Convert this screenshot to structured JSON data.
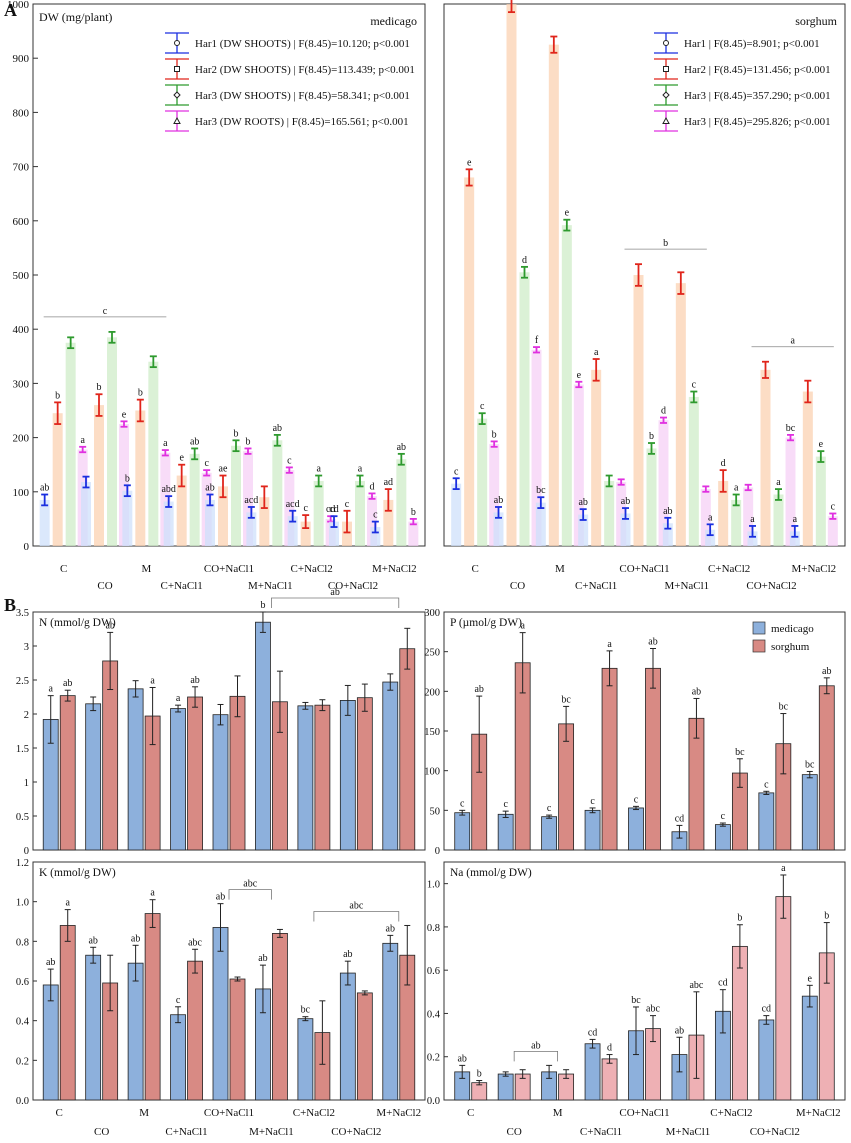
{
  "figure": {
    "panel_labels": [
      "A",
      "B"
    ],
    "colors": {
      "har1": "#1a2fe0",
      "har2": "#e0251b",
      "har3_shoot": "#2e9a2e",
      "har3_root": "#e030e0",
      "medicago_bar": "#8db0dc",
      "sorghum_bar": "#d88a84",
      "sorghum_na_bar": "#eeb0b4",
      "axis": "#333333"
    }
  },
  "chart_data": [
    {
      "id": "A-medicago",
      "type": "bar",
      "title": "medicago",
      "ylabel": "DW (mg/plant)",
      "ylim": [
        0,
        1000
      ],
      "yticks": [
        0,
        100,
        200,
        300,
        400,
        500,
        600,
        700,
        800,
        900,
        1000
      ],
      "categories": [
        "C",
        "CO",
        "M",
        "C+NaCl1",
        "CO+NaCl1",
        "M+NaCl1",
        "C+NaCl2",
        "CO+NaCl2",
        "M+NaCl2"
      ],
      "legend": [
        "Har1 (DW SHOOTS) | F(8.45)=10.120; p<0.001",
        "Har2 (DW SHOOTS) | F(8.45)=113.439; p<0.001",
        "Har3 (DW SHOOTS) | F(8.45)=58.341; p<0.001",
        "Har3 (DW ROOTS) | F(8.45)=165.561; p<0.001"
      ],
      "series": [
        {
          "name": "Har1 (DW SHOOTS)",
          "values": [
            85,
            118,
            102,
            82,
            85,
            62,
            55,
            45,
            35
          ],
          "errors": [
            10,
            10,
            10,
            10,
            10,
            10,
            10,
            10,
            10
          ],
          "letters": [
            "ab",
            "",
            "b",
            "abd",
            "ab",
            "acd",
            "acd",
            "cd",
            "c"
          ]
        },
        {
          "name": "Har2 (DW SHOOTS)",
          "values": [
            245,
            260,
            250,
            130,
            110,
            90,
            45,
            45,
            85
          ],
          "errors": [
            20,
            20,
            20,
            20,
            20,
            20,
            12,
            20,
            20
          ],
          "letters": [
            "b",
            "b",
            "b",
            "e",
            "ae",
            "",
            "c",
            "c",
            "ad"
          ]
        },
        {
          "name": "Har3 (DW SHOOTS)",
          "values": [
            375,
            385,
            340,
            170,
            185,
            195,
            120,
            120,
            160
          ],
          "errors": [
            10,
            10,
            10,
            10,
            10,
            10,
            10,
            10,
            10
          ],
          "letters": [
            "",
            "",
            "",
            "ab",
            "b",
            "ab",
            "a",
            "a",
            "ab"
          ]
        },
        {
          "name": "Har3 (DW ROOTS)",
          "values": [
            178,
            225,
            172,
            135,
            175,
            140,
            50,
            92,
            45
          ],
          "errors": [
            5,
            5,
            5,
            5,
            5,
            5,
            5,
            5,
            5
          ],
          "letters": [
            "a",
            "e",
            "a",
            "c",
            "b",
            "c",
            "cd",
            "d",
            "b"
          ]
        }
      ],
      "bracket": {
        "label": "c",
        "from": "C",
        "to": "M"
      }
    },
    {
      "id": "A-sorghum",
      "type": "bar",
      "title": "sorghum",
      "ylim": [
        0,
        1000
      ],
      "categories": [
        "C",
        "CO",
        "M",
        "C+NaCl1",
        "CO+NaCl1",
        "M+NaCl1",
        "C+NaCl2",
        "CO+NaCl2",
        "M+NaCl2"
      ],
      "legend": [
        "Har1 | F(8.45)=8.901; p<0.001",
        "Har2 | F(8.45)=131.456; p<0.001",
        "Har3 | F(8.45)=357.290; p<0.001",
        "Har3 | F(8.45)=295.826; p<0.001"
      ],
      "series": [
        {
          "name": "Har1",
          "values": [
            115,
            62,
            80,
            58,
            60,
            42,
            30,
            27,
            27
          ],
          "errors": [
            10,
            10,
            10,
            10,
            10,
            10,
            10,
            10,
            10
          ],
          "letters": [
            "c",
            "ab",
            "bc",
            "ab",
            "ab",
            "ab",
            "a",
            "a",
            "a"
          ]
        },
        {
          "name": "Har2",
          "values": [
            680,
            1000,
            925,
            325,
            500,
            485,
            120,
            325,
            285
          ],
          "errors": [
            15,
            15,
            15,
            20,
            20,
            20,
            20,
            15,
            20
          ],
          "letters": [
            "e",
            "",
            "",
            "a",
            "",
            "",
            "d",
            "",
            ""
          ]
        },
        {
          "name": "Har3 (shoots)",
          "values": [
            235,
            505,
            592,
            120,
            180,
            275,
            85,
            95,
            165
          ],
          "errors": [
            10,
            10,
            10,
            10,
            10,
            10,
            10,
            10,
            10
          ],
          "letters": [
            "c",
            "d",
            "e",
            "",
            "b",
            "c",
            "a",
            "a",
            "e"
          ]
        },
        {
          "name": "Har3 (roots)",
          "values": [
            188,
            362,
            298,
            118,
            232,
            105,
            108,
            200,
            55
          ],
          "errors": [
            5,
            5,
            5,
            5,
            5,
            5,
            5,
            5,
            5
          ],
          "letters": [
            "b",
            "f",
            "e",
            "",
            "d",
            "",
            "",
            "bc",
            "c"
          ]
        }
      ],
      "brackets": [
        {
          "label": "c",
          "from": "CO",
          "to": "M"
        },
        {
          "label": "b",
          "from": "CO+NaCl1",
          "to": "M+NaCl1"
        },
        {
          "label": "a",
          "from": "CO+NaCl2",
          "to": "M+NaCl2"
        }
      ]
    },
    {
      "id": "B-N",
      "type": "bar",
      "ylabel": "N (mmol/g DW)",
      "ylim": [
        0,
        3.5
      ],
      "yticks": [
        0,
        0.5,
        1,
        1.5,
        2,
        2.5,
        3,
        3.5
      ],
      "categories": [
        "C",
        "CO",
        "M",
        "C+NaCl1",
        "CO+NaCl1",
        "M+NaCl1",
        "C+NaCl2",
        "CO+NaCl2",
        "M+NaCl2"
      ],
      "series": [
        {
          "name": "medicago",
          "values": [
            1.92,
            2.15,
            2.37,
            2.08,
            1.99,
            3.35,
            2.12,
            2.2,
            2.47
          ],
          "errors": [
            0.35,
            0.1,
            0.12,
            0.05,
            0.15,
            0.15,
            0.05,
            0.22,
            0.12
          ],
          "letters": [
            "a",
            "",
            "",
            "a",
            "",
            "b",
            "",
            "",
            ""
          ]
        },
        {
          "name": "sorghum",
          "values": [
            2.27,
            2.78,
            1.97,
            2.25,
            2.26,
            2.18,
            2.13,
            2.24,
            2.96
          ],
          "errors": [
            0.08,
            0.42,
            0.42,
            0.15,
            0.3,
            0.45,
            0.08,
            0.2,
            0.3
          ],
          "letters": [
            "ab",
            "ab",
            "a",
            "ab",
            "",
            "",
            "",
            "",
            ""
          ]
        }
      ],
      "bracket": {
        "label": "ab",
        "from": "M+NaCl1",
        "to": "M+NaCl2"
      }
    },
    {
      "id": "B-P",
      "type": "bar",
      "ylabel": "P (µmol/g DW)",
      "ylim": [
        0,
        300
      ],
      "yticks": [
        0,
        50,
        100,
        150,
        200,
        250,
        300
      ],
      "legend": [
        "medicago",
        "sorghum"
      ],
      "categories": [
        "C",
        "CO",
        "M",
        "C+NaCl1",
        "CO+NaCl1",
        "M+NaCl1",
        "C+NaCl2",
        "CO+NaCl2",
        "M+NaCl2"
      ],
      "series": [
        {
          "name": "medicago",
          "values": [
            47,
            45,
            42,
            50,
            53,
            23,
            32,
            72,
            95
          ],
          "errors": [
            3,
            4,
            2,
            3,
            2,
            8,
            2,
            2,
            4
          ],
          "letters": [
            "c",
            "c",
            "c",
            "c",
            "c",
            "cd",
            "c",
            "c",
            "bc"
          ]
        },
        {
          "name": "sorghum",
          "values": [
            146,
            236,
            159,
            229,
            229,
            166,
            97,
            134,
            207
          ],
          "errors": [
            48,
            38,
            22,
            22,
            25,
            25,
            18,
            38,
            10
          ],
          "letters": [
            "ab",
            "a",
            "bc",
            "a",
            "ab",
            "ab",
            "bc",
            "bc",
            "ab"
          ]
        }
      ]
    },
    {
      "id": "B-K",
      "type": "bar",
      "ylabel": "K (mmol/g DW)",
      "ylim": [
        0,
        1.2
      ],
      "yticks": [
        0.0,
        0.2,
        0.4,
        0.6,
        0.8,
        1.0,
        1.2
      ],
      "categories": [
        "C",
        "CO",
        "M",
        "C+NaCl1",
        "CO+NaCl1",
        "M+NaCl1",
        "C+NaCl2",
        "CO+NaCl2",
        "M+NaCl2"
      ],
      "series": [
        {
          "name": "medicago",
          "values": [
            0.58,
            0.73,
            0.69,
            0.43,
            0.87,
            0.56,
            0.41,
            0.64,
            0.79
          ],
          "errors": [
            0.08,
            0.04,
            0.09,
            0.04,
            0.12,
            0.12,
            0.01,
            0.06,
            0.04
          ],
          "letters": [
            "ab",
            "ab",
            "ab",
            "c",
            "ab",
            "ab",
            "bc",
            "ab",
            "ab"
          ]
        },
        {
          "name": "sorghum",
          "values": [
            0.88,
            0.59,
            0.94,
            0.7,
            0.61,
            0.84,
            0.34,
            0.54,
            0.73
          ],
          "errors": [
            0.08,
            0.14,
            0.07,
            0.06,
            0.01,
            0.02,
            0.16,
            0.01,
            0.15
          ],
          "letters": [
            "a",
            "",
            "a",
            "abc",
            "",
            "",
            "",
            "",
            ""
          ]
        }
      ],
      "brackets": [
        {
          "label": "abc",
          "from": "CO+NaCl1",
          "to": "M+NaCl1"
        },
        {
          "label": "abc",
          "from": "C+NaCl2",
          "to": "M+NaCl2"
        }
      ]
    },
    {
      "id": "B-Na",
      "type": "bar",
      "ylabel": "Na (mmol/g DW)",
      "ylim": [
        0,
        1.1
      ],
      "yticks": [
        0.0,
        0.2,
        0.4,
        0.6,
        0.8,
        1.0
      ],
      "categories": [
        "C",
        "CO",
        "M",
        "C+NaCl1",
        "CO+NaCl1",
        "M+NaCl1",
        "C+NaCl2",
        "CO+NaCl2",
        "M+NaCl2"
      ],
      "series": [
        {
          "name": "medicago",
          "values": [
            0.13,
            0.12,
            0.13,
            0.26,
            0.32,
            0.21,
            0.41,
            0.37,
            0.48
          ],
          "errors": [
            0.03,
            0.01,
            0.03,
            0.02,
            0.11,
            0.08,
            0.1,
            0.02,
            0.05
          ],
          "letters": [
            "ab",
            "",
            "",
            "cd",
            "bc",
            "ab",
            "cd",
            "cd",
            "e"
          ]
        },
        {
          "name": "sorghum",
          "values": [
            0.08,
            0.12,
            0.12,
            0.19,
            0.33,
            0.3,
            0.71,
            0.94,
            0.68
          ],
          "errors": [
            0.01,
            0.02,
            0.02,
            0.02,
            0.06,
            0.2,
            0.1,
            0.1,
            0.14
          ],
          "letters": [
            "b",
            "",
            "",
            "d",
            "abc",
            "abc",
            "b",
            "a",
            "b"
          ]
        }
      ],
      "bracket": {
        "label": "ab",
        "from": "CO",
        "to": "M"
      }
    }
  ]
}
